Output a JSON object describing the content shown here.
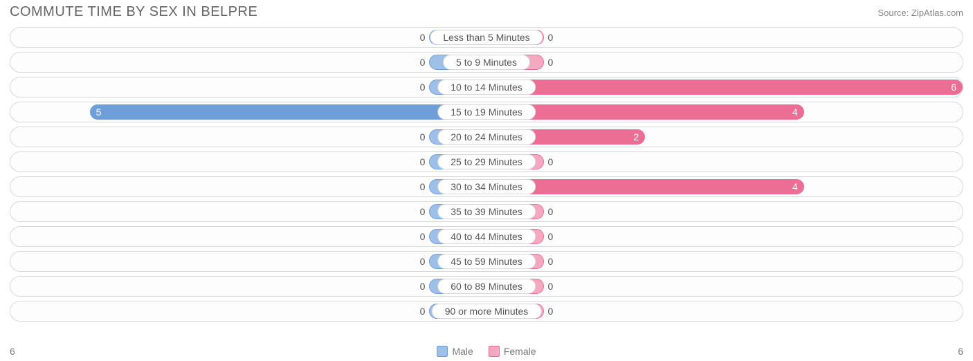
{
  "title": "COMMUTE TIME BY SEX IN BELPRE",
  "source": "Source: ZipAtlas.com",
  "chart": {
    "type": "diverging-bar",
    "background_color": "#ffffff",
    "row_border_color": "#d8d8d8",
    "label_text_color": "#555555",
    "title_color": "#666666",
    "title_fontsize": 20,
    "label_fontsize": 14,
    "max_value": 6,
    "min_bar_pct": 12,
    "series": {
      "male": {
        "label": "Male",
        "fill": "#9ebfe8",
        "border": "#6f9fd8",
        "strong_fill": "#6f9fd8"
      },
      "female": {
        "label": "Female",
        "fill": "#f5a9c0",
        "border": "#ec6e95",
        "strong_fill": "#ec6e95"
      }
    },
    "categories": [
      {
        "label": "Less than 5 Minutes",
        "male": 0,
        "female": 0
      },
      {
        "label": "5 to 9 Minutes",
        "male": 0,
        "female": 0
      },
      {
        "label": "10 to 14 Minutes",
        "male": 0,
        "female": 6
      },
      {
        "label": "15 to 19 Minutes",
        "male": 5,
        "female": 4
      },
      {
        "label": "20 to 24 Minutes",
        "male": 0,
        "female": 2
      },
      {
        "label": "25 to 29 Minutes",
        "male": 0,
        "female": 0
      },
      {
        "label": "30 to 34 Minutes",
        "male": 0,
        "female": 4
      },
      {
        "label": "35 to 39 Minutes",
        "male": 0,
        "female": 0
      },
      {
        "label": "40 to 44 Minutes",
        "male": 0,
        "female": 0
      },
      {
        "label": "45 to 59 Minutes",
        "male": 0,
        "female": 0
      },
      {
        "label": "60 to 89 Minutes",
        "male": 0,
        "female": 0
      },
      {
        "label": "90 or more Minutes",
        "male": 0,
        "female": 0
      }
    ]
  },
  "footer": {
    "axis_left": "6",
    "axis_right": "6"
  }
}
